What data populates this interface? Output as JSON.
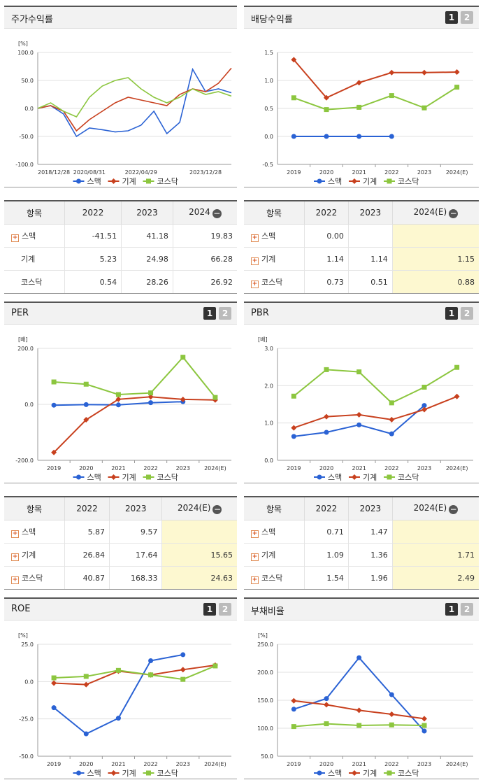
{
  "legend": [
    "스맥",
    "기계",
    "코스닥"
  ],
  "colors": {
    "s1": "#2a62d4",
    "s2": "#c8401e",
    "s3": "#8cc63f"
  },
  "tab_labels": [
    "1",
    "2"
  ],
  "charts": {
    "stock": {
      "title": "주가수익률",
      "unit": "[%]",
      "yticks": [
        "100.0",
        "50.0",
        "0.0",
        "-50.0",
        "-100.0"
      ],
      "xticks": [
        "2018/12/28",
        "2020/08/31",
        "2022/04/29",
        "2023/12/28"
      ]
    },
    "dividend": {
      "title": "배당수익률",
      "unit": "",
      "yticks": [
        "1.5",
        "1.0",
        "0.5",
        "0.0",
        "-0.5"
      ],
      "xticks": [
        "2019",
        "2020",
        "2021",
        "2022",
        "2023",
        "2024(E)"
      ]
    },
    "per": {
      "title": "PER",
      "unit": "[배]",
      "yticks": [
        "200.0",
        "0.0",
        "-200.0"
      ],
      "xticks": [
        "2019",
        "2020",
        "2021",
        "2022",
        "2023",
        "2024(E)"
      ]
    },
    "pbr": {
      "title": "PBR",
      "unit": "[배]",
      "yticks": [
        "3.0",
        "2.0",
        "1.0",
        "0.0"
      ],
      "xticks": [
        "2019",
        "2020",
        "2021",
        "2022",
        "2023",
        "2024(E)"
      ]
    },
    "roe": {
      "title": "ROE",
      "unit": "[%]",
      "yticks": [
        "25.0",
        "0.0",
        "-25.0",
        "-50.0"
      ],
      "xticks": [
        "2019",
        "2020",
        "2021",
        "2022",
        "2023",
        "2024(E)"
      ]
    },
    "debt": {
      "title": "부채비율",
      "unit": "[%]",
      "yticks": [
        "250.0",
        "200.0",
        "150.0",
        "100.0",
        "50.0"
      ],
      "xticks": [
        "2019",
        "2020",
        "2021",
        "2022",
        "2023",
        "2024(E)"
      ]
    }
  },
  "tables": {
    "stock": {
      "headers": [
        "항목",
        "2022",
        "2023",
        "2024"
      ],
      "rows": [
        {
          "name": "스맥",
          "plus": true,
          "v": [
            "-41.51",
            "41.18",
            "19.83"
          ]
        },
        {
          "name": "기계",
          "plus": false,
          "v": [
            "5.23",
            "24.98",
            "66.28"
          ]
        },
        {
          "name": "코스닥",
          "plus": false,
          "v": [
            "0.54",
            "28.26",
            "26.92"
          ]
        }
      ]
    },
    "dividend": {
      "headers": [
        "항목",
        "2022",
        "2023",
        "2024(E)"
      ],
      "rows": [
        {
          "name": "스맥",
          "plus": true,
          "v": [
            "0.00",
            "",
            ""
          ]
        },
        {
          "name": "기계",
          "plus": true,
          "v": [
            "1.14",
            "1.14",
            "1.15"
          ]
        },
        {
          "name": "코스닥",
          "plus": true,
          "v": [
            "0.73",
            "0.51",
            "0.88"
          ]
        }
      ]
    },
    "per": {
      "headers": [
        "항목",
        "2022",
        "2023",
        "2024(E)"
      ],
      "rows": [
        {
          "name": "스맥",
          "plus": true,
          "v": [
            "5.87",
            "9.57",
            ""
          ]
        },
        {
          "name": "기계",
          "plus": true,
          "v": [
            "26.84",
            "17.64",
            "15.65"
          ]
        },
        {
          "name": "코스닥",
          "plus": true,
          "v": [
            "40.87",
            "168.33",
            "24.63"
          ]
        }
      ]
    },
    "pbr": {
      "headers": [
        "항목",
        "2022",
        "2023",
        "2024(E)"
      ],
      "rows": [
        {
          "name": "스맥",
          "plus": true,
          "v": [
            "0.71",
            "1.47",
            ""
          ]
        },
        {
          "name": "기계",
          "plus": true,
          "v": [
            "1.09",
            "1.36",
            "1.71"
          ]
        },
        {
          "name": "코스닥",
          "plus": true,
          "v": [
            "1.54",
            "1.96",
            "2.49"
          ]
        }
      ]
    }
  },
  "chart_data": [
    {
      "type": "line",
      "title": "주가수익률",
      "ylabel": "[%]",
      "ylim": [
        -100,
        100
      ],
      "x": [
        "2018/12/28",
        "2019/06",
        "2019/12",
        "2020/04",
        "2020/08/31",
        "2021/01",
        "2021/06",
        "2021/12",
        "2022/04/29",
        "2022/08",
        "2022/12",
        "2023/04",
        "2023/08",
        "2023/12/28",
        "2024/04",
        "2024/08"
      ],
      "series": [
        {
          "name": "스맥",
          "values": [
            0,
            5,
            -10,
            -50,
            -35,
            -38,
            -42,
            -40,
            -30,
            -5,
            -45,
            -25,
            70,
            30,
            35,
            28
          ]
        },
        {
          "name": "기계",
          "values": [
            0,
            5,
            -5,
            -40,
            -20,
            -5,
            10,
            20,
            15,
            10,
            5,
            25,
            35,
            30,
            45,
            72
          ]
        },
        {
          "name": "코스닥",
          "values": [
            0,
            10,
            -5,
            -15,
            20,
            40,
            50,
            55,
            35,
            20,
            10,
            20,
            35,
            25,
            30,
            22
          ]
        }
      ]
    },
    {
      "type": "line",
      "title": "배당수익률",
      "ylim": [
        -0.5,
        1.5
      ],
      "x": [
        "2019",
        "2020",
        "2021",
        "2022",
        "2023",
        "2024(E)"
      ],
      "series": [
        {
          "name": "스맥",
          "values": [
            0.0,
            0.0,
            0.0,
            0.0,
            null,
            null
          ]
        },
        {
          "name": "기계",
          "values": [
            1.37,
            0.69,
            0.96,
            1.14,
            1.14,
            1.15
          ]
        },
        {
          "name": "코스닥",
          "values": [
            0.69,
            0.48,
            0.52,
            0.73,
            0.51,
            0.88
          ]
        }
      ]
    },
    {
      "type": "line",
      "title": "PER",
      "ylabel": "[배]",
      "ylim": [
        -200,
        200
      ],
      "x": [
        "2019",
        "2020",
        "2021",
        "2022",
        "2023",
        "2024(E)"
      ],
      "series": [
        {
          "name": "스맥",
          "values": [
            -3,
            -1,
            -2,
            5.87,
            9.57,
            null
          ]
        },
        {
          "name": "기계",
          "values": [
            -172,
            -55,
            18,
            26.84,
            17.64,
            15.65
          ]
        },
        {
          "name": "코스닥",
          "values": [
            80,
            72,
            35,
            40.87,
            168.33,
            24.63
          ]
        }
      ]
    },
    {
      "type": "line",
      "title": "PBR",
      "ylabel": "[배]",
      "ylim": [
        0,
        3
      ],
      "x": [
        "2019",
        "2020",
        "2021",
        "2022",
        "2023",
        "2024(E)"
      ],
      "series": [
        {
          "name": "스맥",
          "values": [
            0.64,
            0.75,
            0.95,
            0.71,
            1.47,
            null
          ]
        },
        {
          "name": "기계",
          "values": [
            0.87,
            1.17,
            1.22,
            1.09,
            1.36,
            1.71
          ]
        },
        {
          "name": "코스닥",
          "values": [
            1.72,
            2.43,
            2.37,
            1.54,
            1.96,
            2.49
          ]
        }
      ]
    },
    {
      "type": "line",
      "title": "ROE",
      "ylabel": "[%]",
      "ylim": [
        -50,
        25
      ],
      "x": [
        "2019",
        "2020",
        "2021",
        "2022",
        "2023",
        "2024(E)"
      ],
      "series": [
        {
          "name": "스맥",
          "values": [
            -17.5,
            -35,
            -24.5,
            14,
            18,
            null
          ]
        },
        {
          "name": "기계",
          "values": [
            -1,
            -2,
            7,
            4.5,
            8,
            11
          ]
        },
        {
          "name": "코스닥",
          "values": [
            2.5,
            3.5,
            7.5,
            4.5,
            1.5,
            10.5
          ]
        }
      ]
    },
    {
      "type": "line",
      "title": "부채비율",
      "ylabel": "[%]",
      "ylim": [
        50,
        250
      ],
      "x": [
        "2019",
        "2020",
        "2021",
        "2022",
        "2023",
        "2024(E)"
      ],
      "series": [
        {
          "name": "스맥",
          "values": [
            134,
            153,
            226,
            160,
            95,
            null
          ]
        },
        {
          "name": "기계",
          "values": [
            149,
            142,
            132,
            125,
            117,
            null
          ]
        },
        {
          "name": "코스닥",
          "values": [
            103,
            108,
            105,
            106,
            105,
            null
          ]
        }
      ]
    }
  ]
}
